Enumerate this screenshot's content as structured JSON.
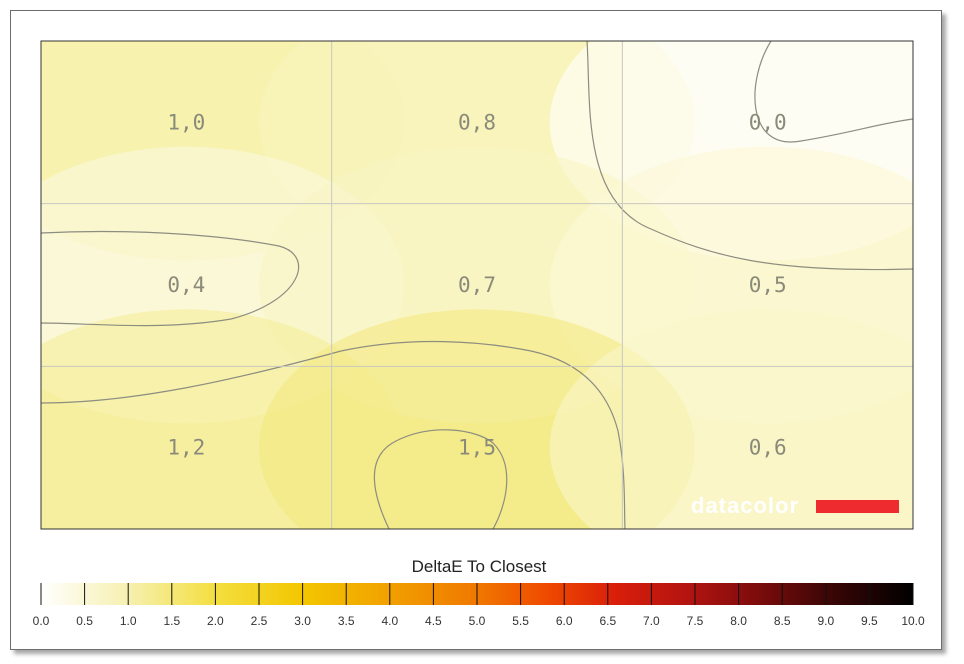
{
  "chart_data": {
    "type": "heatmap",
    "title": "",
    "grid": true,
    "rows": 3,
    "cols": 3,
    "values": [
      [
        1.0,
        0.8,
        0.0
      ],
      [
        0.4,
        0.7,
        0.5
      ],
      [
        1.2,
        1.5,
        0.6
      ]
    ],
    "cell_labels": [
      [
        "1,0",
        "0,8",
        "0,0"
      ],
      [
        "0,4",
        "0,7",
        "0,5"
      ],
      [
        "1,2",
        "1,5",
        "0,6"
      ]
    ],
    "colorbar": {
      "title": "DeltaE To Closest",
      "min": 0.0,
      "max": 10.0,
      "step": 0.5,
      "tick_labels": [
        "0.0",
        "0.5",
        "1.0",
        "1.5",
        "2.0",
        "2.5",
        "3.0",
        "3.5",
        "4.0",
        "4.5",
        "5.0",
        "5.5",
        "6.0",
        "6.5",
        "7.0",
        "7.5",
        "8.0",
        "8.5",
        "9.0",
        "9.5",
        "10.0"
      ]
    },
    "colors": {
      "low": "#ffffff",
      "mid_low": "#f2ec8a",
      "mid": "#f3c800",
      "mid_high": "#f06000",
      "high_red": "#c81010",
      "max": "#000000"
    },
    "watermark": {
      "text": "datacolor",
      "bar_color": "#ee2b2f"
    }
  }
}
